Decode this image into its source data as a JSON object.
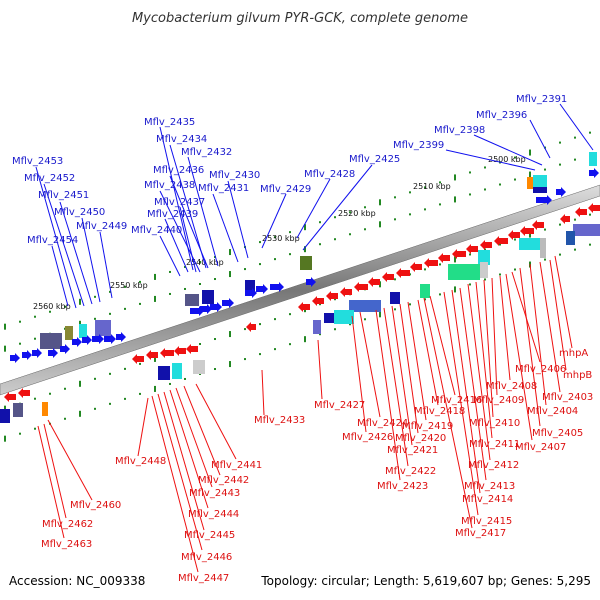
{
  "title": "Mycobacterium gilvum PYR-GCK, complete genome",
  "accession": "Accession: NC_009338",
  "topology": "Topology: circular; Length: 5,619,607 bp; Genes: 5,295",
  "kbp_labels": [
    "2500 kbp",
    "2510 kbp",
    "2520 kbp",
    "2530 kbp",
    "2540 kbp",
    "2550 kbp",
    "2560 kbp"
  ],
  "genes_top": [
    "Mflv_2391",
    "Mflv_2396",
    "Mflv_2398",
    "Mflv_2399",
    "Mflv_2425",
    "Mflv_2428",
    "Mflv_2429",
    "Mflv_2430",
    "Mflv_2431",
    "Mflv_2432",
    "Mflv_2434",
    "Mflv_2435",
    "Mflv_2436",
    "Mflv_2437",
    "Mflv_2438",
    "Mflv_2439",
    "Mflv_2440",
    "Mflv_2449",
    "Mflv_2450",
    "Mflv_2451",
    "Mflv_2452",
    "Mflv_2453",
    "Mflv_2454"
  ],
  "genes_bottom": [
    "mhpA",
    "mhpB",
    "Mflv_2403",
    "Mflv_2404",
    "Mflv_2405",
    "Mflv_2406",
    "Mflv_2407",
    "Mflv_2408",
    "Mflv_2409",
    "Mflv_2410",
    "Mflv_2411",
    "Mflv_2412",
    "Mflv_2413",
    "Mflv_2414",
    "Mflv_2415",
    "Mflv_2416",
    "Mflv_2417",
    "Mflv_2418",
    "Mflv_2419",
    "Mflv_2420",
    "Mflv_2421",
    "Mflv_2422",
    "Mflv_2423",
    "Mflv_2424",
    "Mflv_2426",
    "Mflv_2427",
    "Mflv_2433",
    "Mflv_2441",
    "Mflv_2442",
    "Mflv_2443",
    "Mflv_2444",
    "Mflv_2445",
    "Mflv_2446",
    "Mflv_2447",
    "Mflv_2448",
    "Mflv_2460",
    "Mflv_2462",
    "Mflv_2463"
  ],
  "colors": {
    "forward": "#1111ee",
    "reverse": "#ee1111",
    "backbone": "#888888",
    "tick": "#228822"
  }
}
